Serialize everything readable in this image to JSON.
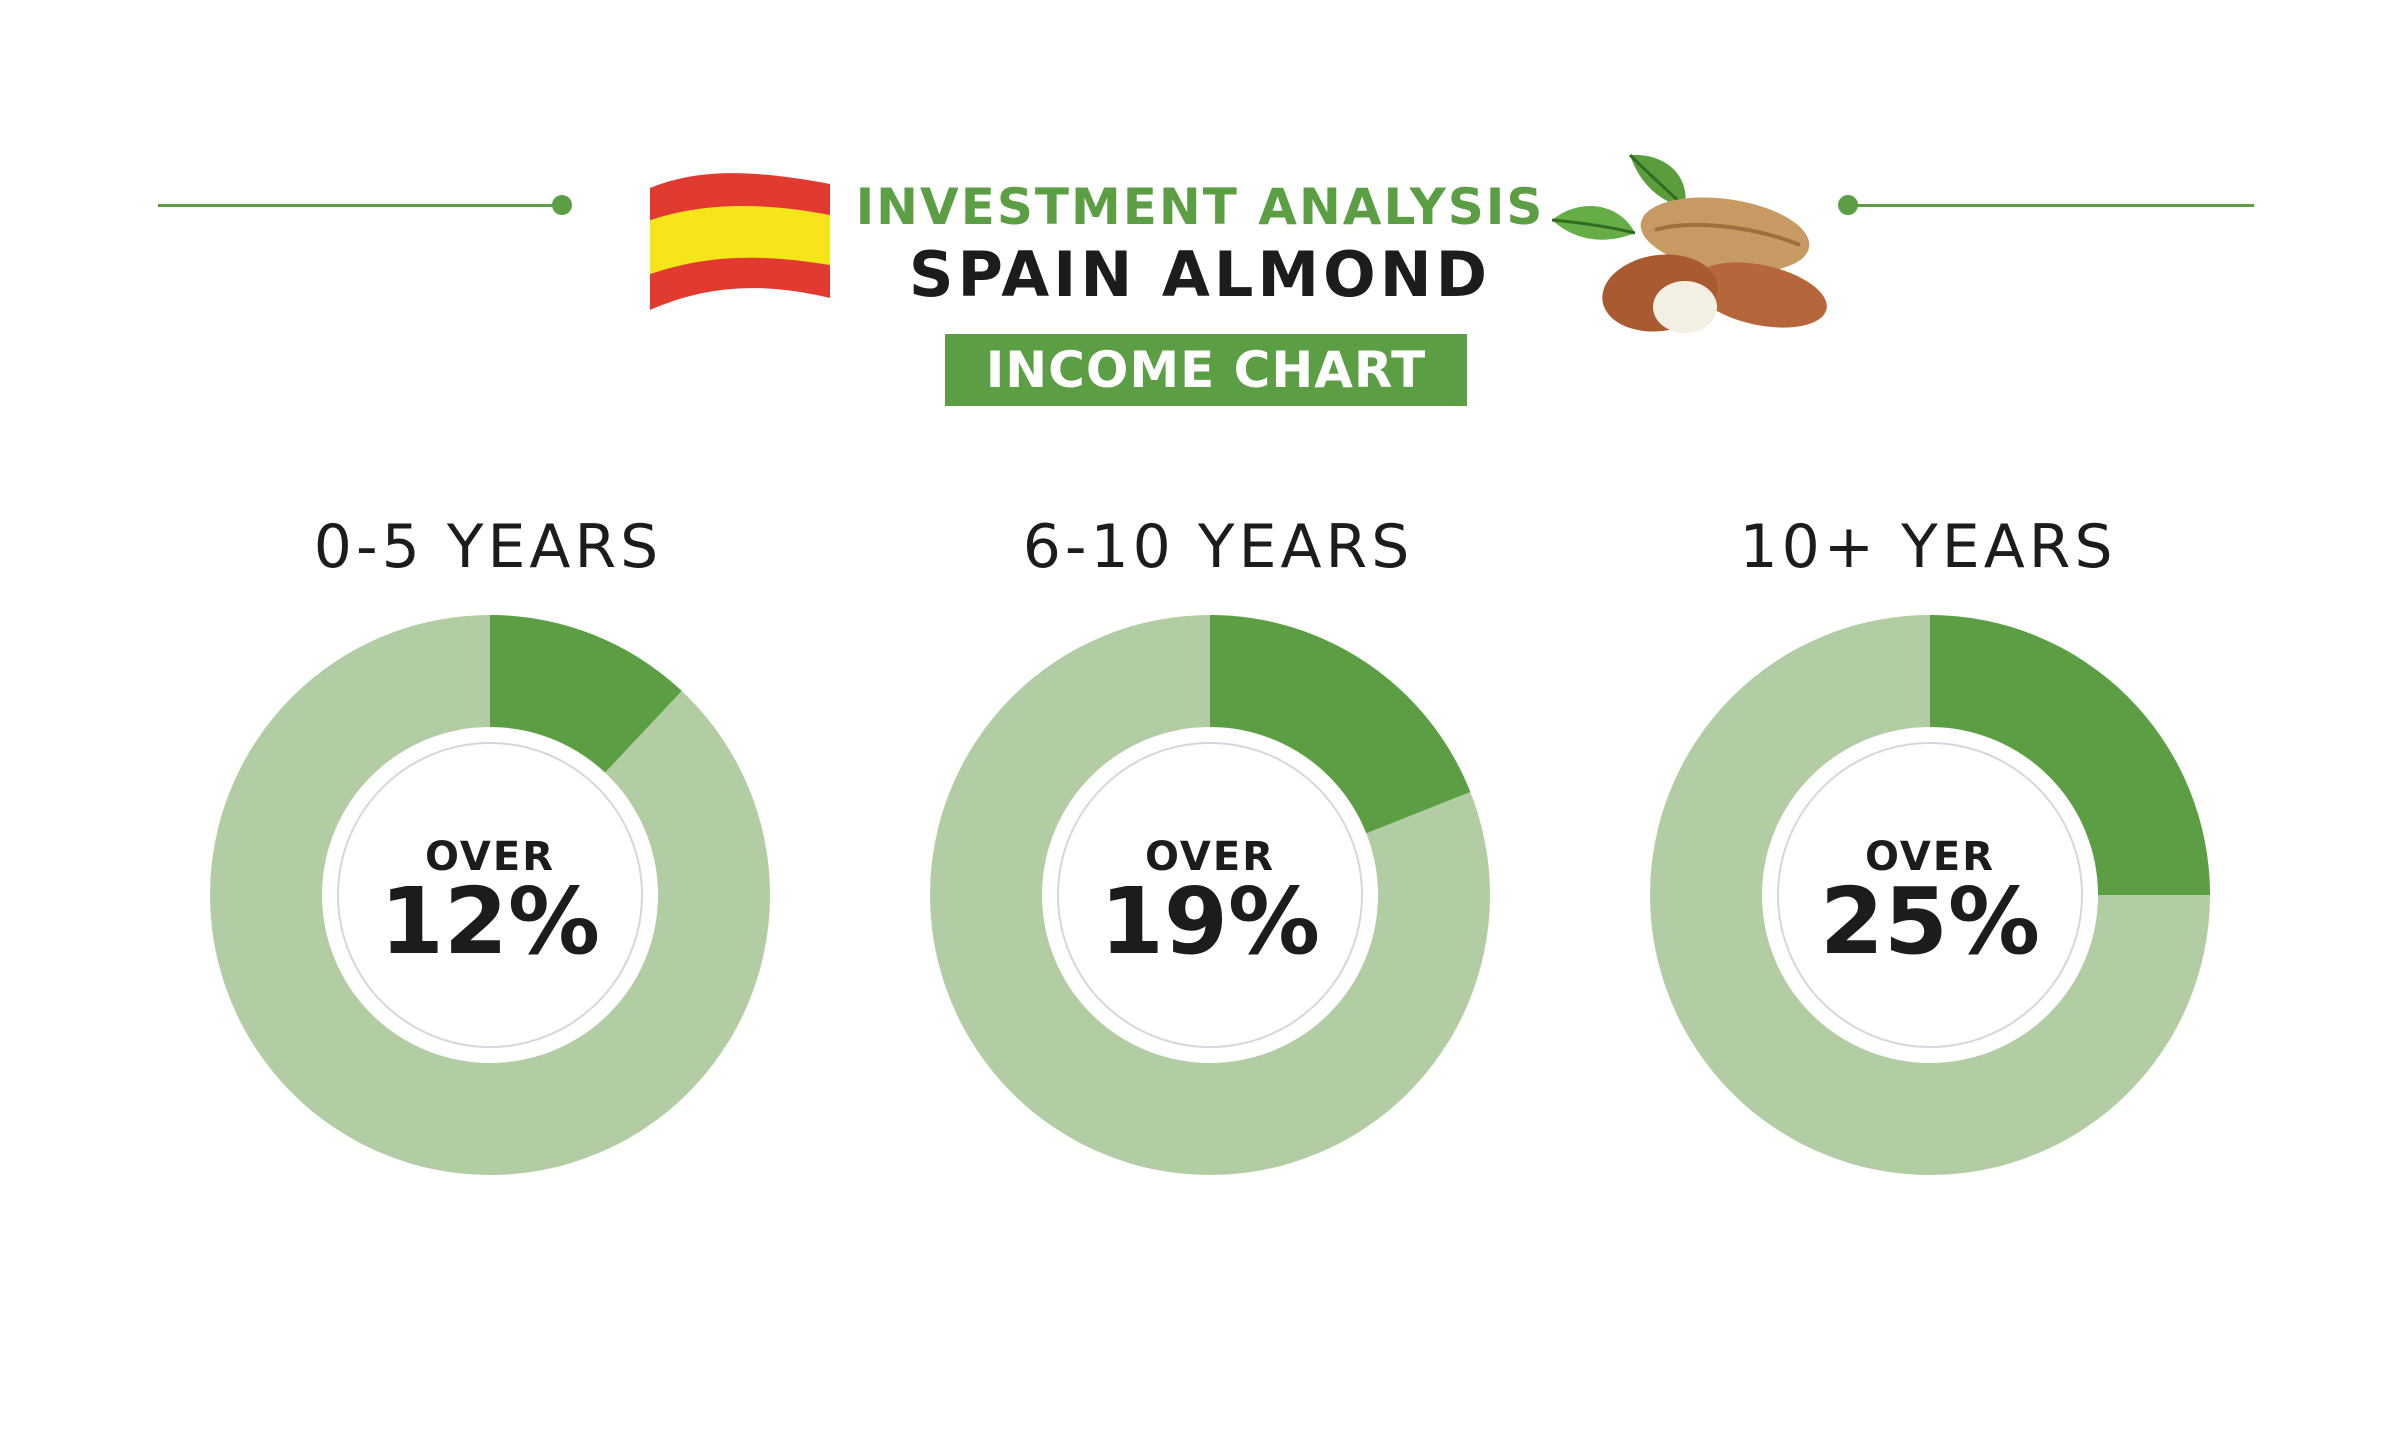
{
  "header": {
    "title_line1": "INVESTMENT ANALYSIS",
    "title_line2": "SPAIN ALMOND",
    "badge": "INCOME CHART"
  },
  "colors": {
    "accent": "#5b9e44",
    "accent_light": "#b2cda3",
    "text": "#1c1c1c"
  },
  "chart_data": {
    "type": "pie",
    "variant": "donut",
    "charts": [
      {
        "label": "0-5 YEARS",
        "prefix": "OVER",
        "value_text": "12%",
        "value": 12
      },
      {
        "label": "6-10 YEARS",
        "prefix": "OVER",
        "value_text": "19%",
        "value": 19
      },
      {
        "label": "10+ YEARS",
        "prefix": "OVER",
        "value_text": "25%",
        "value": 25
      }
    ]
  }
}
